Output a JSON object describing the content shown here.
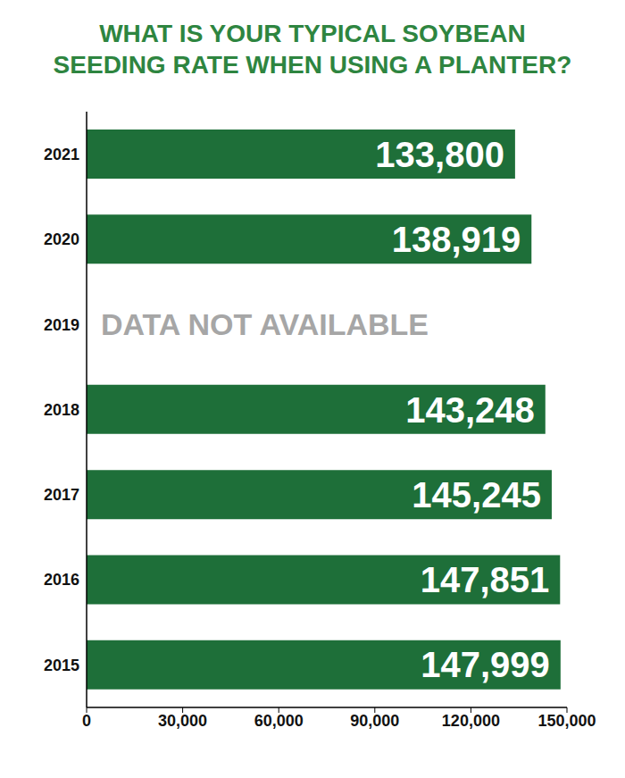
{
  "chart_data": {
    "type": "bar",
    "orientation": "horizontal",
    "title": "WHAT IS YOUR TYPICAL SOYBEAN SEEDING RATE WHEN USING A PLANTER?",
    "categories": [
      "2021",
      "2020",
      "2019",
      "2018",
      "2017",
      "2016",
      "2015"
    ],
    "values": [
      133800,
      138919,
      null,
      143248,
      145245,
      147851,
      147999
    ],
    "value_labels": [
      "133,800",
      "138,919",
      null,
      "143,248",
      "145,245",
      "147,851",
      "147,999"
    ],
    "data_labels": true,
    "color": "#1e6f39",
    "xlim": [
      0,
      150000
    ],
    "xticks": [
      0,
      {
        "value": 30000,
        "label": "30,000"
      },
      {
        "value": 60000,
        "label": "60,000"
      },
      {
        "value": 90000,
        "label": "90,000"
      },
      {
        "value": 120000,
        "label": "120,000"
      },
      {
        "value": 150000,
        "label": "150,000"
      }
    ],
    "grid": false,
    "annotations": [
      {
        "category": "2019",
        "text": "DATA NOT AVAILABLE"
      }
    ]
  }
}
